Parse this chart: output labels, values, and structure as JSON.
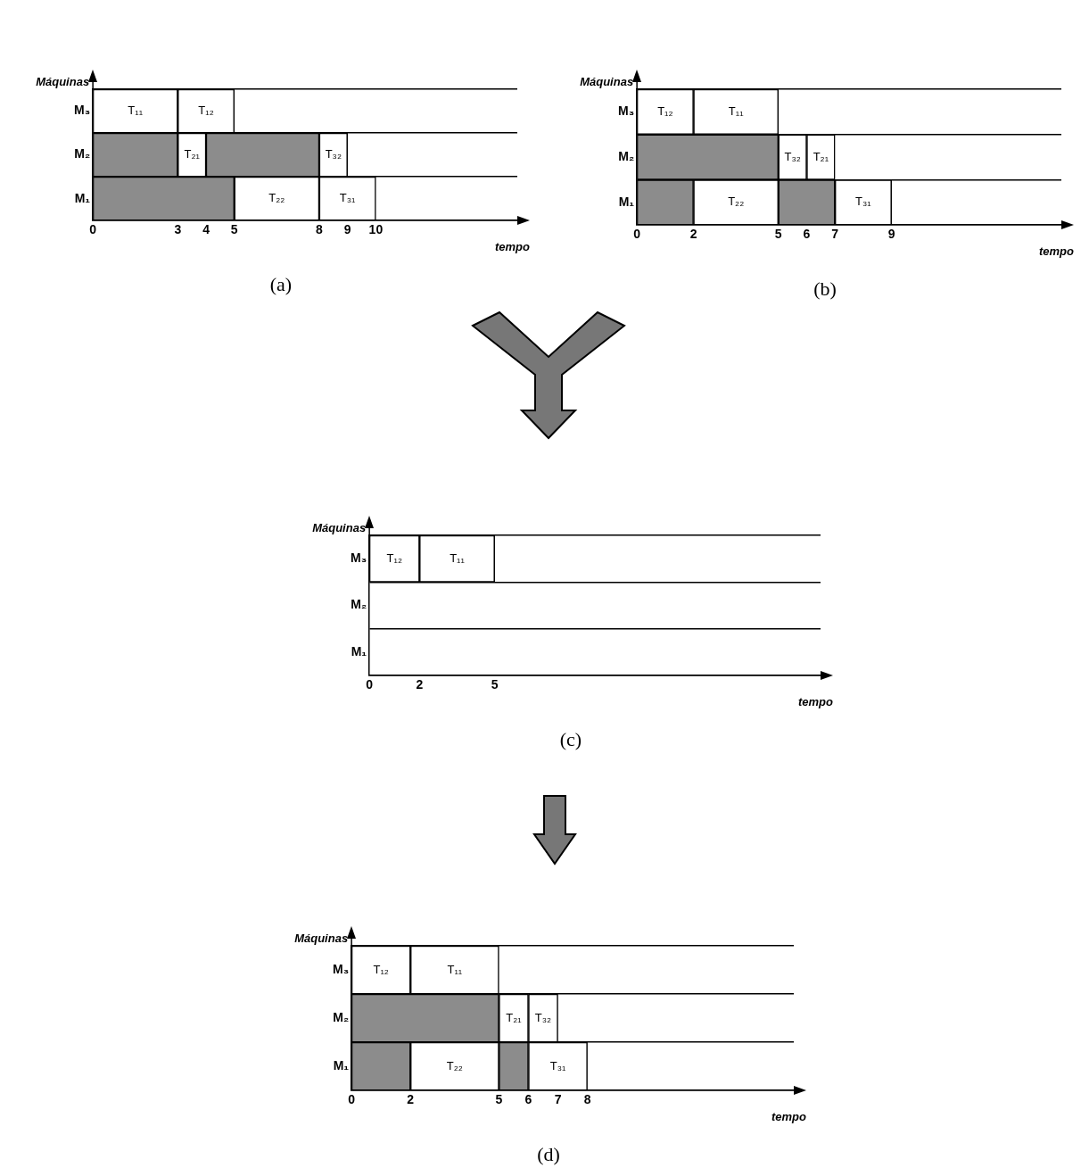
{
  "chart_data": [
    {
      "type": "bar",
      "orientation": "horizontal",
      "xlabel": "tempo",
      "ylabel": "Máquinas",
      "categories": [
        "M₃",
        "M₂",
        "M₁"
      ],
      "xlim": [
        0,
        15
      ],
      "xticks": [
        0,
        3,
        4,
        5,
        8,
        9,
        10
      ],
      "grid": "y",
      "legend": false,
      "annotations": [
        "(a)"
      ],
      "series": [
        {
          "color": "#ffffff",
          "base": [
            0,
            null,
            null
          ],
          "values": [
            3,
            null,
            null
          ],
          "value_labels": [
            "T₁₁",
            null,
            null
          ]
        },
        {
          "color": "#ffffff",
          "base": [
            3,
            null,
            null
          ],
          "values": [
            2,
            null,
            null
          ],
          "value_labels": [
            "T₁₂",
            null,
            null
          ]
        },
        {
          "color": "#8c8c8c",
          "base": [
            null,
            0,
            0
          ],
          "values": [
            null,
            3,
            5
          ]
        },
        {
          "color": "#ffffff",
          "base": [
            null,
            3,
            null
          ],
          "values": [
            null,
            1,
            null
          ],
          "value_labels": [
            null,
            "T₂₁",
            null
          ]
        },
        {
          "color": "#8c8c8c",
          "base": [
            null,
            4,
            null
          ],
          "values": [
            null,
            4,
            null
          ]
        },
        {
          "color": "#ffffff",
          "base": [
            null,
            8,
            5
          ],
          "values": [
            null,
            1,
            3
          ],
          "value_labels": [
            null,
            "T₃₂",
            "T₂₂"
          ]
        },
        {
          "color": "#ffffff",
          "base": [
            null,
            null,
            8
          ],
          "values": [
            null,
            null,
            2
          ],
          "value_labels": [
            null,
            null,
            "T₃₁"
          ]
        }
      ]
    },
    {
      "type": "bar",
      "orientation": "horizontal",
      "xlabel": "tempo",
      "ylabel": "Máquinas",
      "categories": [
        "M₃",
        "M₂",
        "M₁"
      ],
      "xlim": [
        0,
        15
      ],
      "xticks": [
        0,
        2,
        5,
        6,
        7,
        9
      ],
      "grid": "y",
      "legend": false,
      "annotations": [
        "(b)"
      ],
      "series": [
        {
          "color": "#ffffff",
          "base": [
            0,
            null,
            null
          ],
          "values": [
            2,
            null,
            null
          ],
          "value_labels": [
            "T₁₂",
            null,
            null
          ]
        },
        {
          "color": "#ffffff",
          "base": [
            2,
            null,
            null
          ],
          "values": [
            3,
            null,
            null
          ],
          "value_labels": [
            "T₁₁",
            null,
            null
          ]
        },
        {
          "color": "#8c8c8c",
          "base": [
            null,
            0,
            0
          ],
          "values": [
            null,
            5,
            2
          ]
        },
        {
          "color": "#ffffff",
          "base": [
            null,
            5,
            2
          ],
          "values": [
            null,
            1,
            3
          ],
          "value_labels": [
            null,
            "T₃₂",
            "T₂₂"
          ]
        },
        {
          "color": "#ffffff",
          "base": [
            null,
            6,
            null
          ],
          "values": [
            null,
            1,
            null
          ],
          "value_labels": [
            null,
            "T₂₁",
            null
          ]
        },
        {
          "color": "#8c8c8c",
          "base": [
            null,
            null,
            5
          ],
          "values": [
            null,
            null,
            2
          ]
        },
        {
          "color": "#ffffff",
          "base": [
            null,
            null,
            7
          ],
          "values": [
            null,
            null,
            2
          ],
          "value_labels": [
            null,
            null,
            "T₃₁"
          ]
        }
      ]
    },
    {
      "type": "bar",
      "orientation": "horizontal",
      "xlabel": "tempo",
      "ylabel": "Máquinas",
      "categories": [
        "M₃",
        "M₂",
        "M₁"
      ],
      "xlim": [
        0,
        18
      ],
      "xticks": [
        0,
        2,
        5
      ],
      "grid": "y",
      "legend": false,
      "annotations": [
        "(c)"
      ],
      "series": [
        {
          "color": "#ffffff",
          "base": [
            0,
            null,
            null
          ],
          "values": [
            2,
            null,
            null
          ],
          "value_labels": [
            "T₁₂",
            null,
            null
          ]
        },
        {
          "color": "#ffffff",
          "base": [
            2,
            null,
            null
          ],
          "values": [
            3,
            null,
            null
          ],
          "value_labels": [
            "T₁₁",
            null,
            null
          ]
        }
      ]
    },
    {
      "type": "bar",
      "orientation": "horizontal",
      "xlabel": "tempo",
      "ylabel": "Máquinas",
      "categories": [
        "M₃",
        "M₂",
        "M₁"
      ],
      "xlim": [
        0,
        15
      ],
      "xticks": [
        0,
        2,
        5,
        6,
        7,
        8
      ],
      "grid": "y",
      "legend": false,
      "annotations": [
        "(d)"
      ],
      "series": [
        {
          "color": "#ffffff",
          "base": [
            0,
            null,
            null
          ],
          "values": [
            2,
            null,
            null
          ],
          "value_labels": [
            "T₁₂",
            null,
            null
          ]
        },
        {
          "color": "#ffffff",
          "base": [
            2,
            null,
            null
          ],
          "values": [
            3,
            null,
            null
          ],
          "value_labels": [
            "T₁₁",
            null,
            null
          ]
        },
        {
          "color": "#8c8c8c",
          "base": [
            null,
            0,
            0
          ],
          "values": [
            null,
            5,
            2
          ]
        },
        {
          "color": "#ffffff",
          "base": [
            null,
            5,
            2
          ],
          "values": [
            null,
            1,
            3
          ],
          "value_labels": [
            null,
            "T₂₁",
            "T₂₂"
          ]
        },
        {
          "color": "#ffffff",
          "base": [
            null,
            6,
            null
          ],
          "values": [
            null,
            1,
            null
          ],
          "value_labels": [
            null,
            "T₃₂",
            null
          ]
        },
        {
          "color": "#8c8c8c",
          "base": [
            null,
            null,
            5
          ],
          "values": [
            null,
            null,
            1
          ]
        },
        {
          "color": "#ffffff",
          "base": [
            null,
            null,
            6
          ],
          "values": [
            null,
            null,
            2
          ],
          "value_labels": [
            null,
            null,
            "T₃₁"
          ]
        }
      ]
    }
  ]
}
